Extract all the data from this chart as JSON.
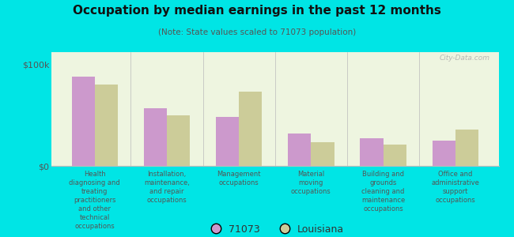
{
  "title": "Occupation by median earnings in the past 12 months",
  "subtitle": "(Note: State values scaled to 71073 population)",
  "background_color": "#00e5e5",
  "plot_bg_color": "#eef5e0",
  "categories": [
    "Health\ndiagnosing and\ntreating\npractitioners\nand other\ntechnical\noccupations",
    "Installation,\nmaintenance,\nand repair\noccupations",
    "Management\noccupations",
    "Material\nmoving\noccupations",
    "Building and\ngrounds\ncleaning and\nmaintenance\noccupations",
    "Office and\nadministrative\nsupport\noccupations"
  ],
  "values_71073": [
    88000,
    57000,
    48000,
    32000,
    27000,
    25000
  ],
  "values_louisiana": [
    80000,
    50000,
    73000,
    23000,
    21000,
    36000
  ],
  "color_71073": "#cc99cc",
  "color_louisiana": "#cccc99",
  "ylabel_ticks": [
    "$0",
    "$100k"
  ],
  "ytick_values": [
    0,
    100000
  ],
  "ylim": [
    0,
    112000
  ],
  "legend_71073": "71073",
  "legend_louisiana": "Louisiana",
  "watermark": "City-Data.com"
}
